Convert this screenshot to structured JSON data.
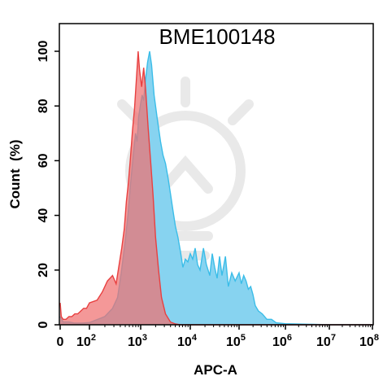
{
  "chart_data": {
    "type": "area",
    "title": "BME100148",
    "xlabel": "APC-A",
    "ylabel": "Count  (%)",
    "xscale": "biexponential",
    "xlim": [
      0,
      100000000
    ],
    "ylim": [
      0,
      110
    ],
    "x_ticks": [
      {
        "base": "0",
        "exp": ""
      },
      {
        "base": "10",
        "exp": "2"
      },
      {
        "base": "10",
        "exp": "3"
      },
      {
        "base": "10",
        "exp": "4"
      },
      {
        "base": "10",
        "exp": "5"
      },
      {
        "base": "10",
        "exp": "6"
      },
      {
        "base": "10",
        "exp": "7"
      },
      {
        "base": "10",
        "exp": "8"
      }
    ],
    "y_ticks": [
      "0",
      "20",
      "40",
      "60",
      "80",
      "100"
    ],
    "grid": false,
    "legend": "none",
    "watermark": "lightbulb logo",
    "series": [
      {
        "color": "#3bbde8",
        "fill": "#87d3f0",
        "points": [
          [
            0,
            3
          ],
          [
            0.1,
            2
          ],
          [
            0.2,
            1
          ],
          [
            0.4,
            1
          ],
          [
            0.6,
            1
          ],
          [
            1.0,
            0.6
          ],
          [
            1.5,
            0.6
          ],
          [
            2.0,
            0.8
          ],
          [
            2.3,
            3
          ],
          [
            2.45,
            6
          ],
          [
            2.55,
            10
          ],
          [
            2.62,
            19
          ],
          [
            2.7,
            31
          ],
          [
            2.75,
            40
          ],
          [
            2.8,
            51
          ],
          [
            2.85,
            61
          ],
          [
            2.9,
            70
          ],
          [
            2.93,
            67
          ],
          [
            2.96,
            76
          ],
          [
            3.0,
            81
          ],
          [
            3.03,
            84
          ],
          [
            3.06,
            82
          ],
          [
            3.1,
            90
          ],
          [
            3.14,
            96
          ],
          [
            3.18,
            100
          ],
          [
            3.22,
            95
          ],
          [
            3.27,
            84
          ],
          [
            3.33,
            76
          ],
          [
            3.4,
            67
          ],
          [
            3.45,
            62
          ],
          [
            3.5,
            59
          ],
          [
            3.55,
            54
          ],
          [
            3.6,
            48
          ],
          [
            3.65,
            42
          ],
          [
            3.7,
            36
          ],
          [
            3.75,
            32
          ],
          [
            3.8,
            27
          ],
          [
            3.85,
            21
          ],
          [
            3.9,
            24
          ],
          [
            3.95,
            23
          ],
          [
            4.0,
            26
          ],
          [
            4.05,
            24
          ],
          [
            4.1,
            28
          ],
          [
            4.15,
            22
          ],
          [
            4.2,
            20
          ],
          [
            4.27,
            28
          ],
          [
            4.33,
            22
          ],
          [
            4.4,
            18
          ],
          [
            4.45,
            26
          ],
          [
            4.5,
            21
          ],
          [
            4.55,
            17
          ],
          [
            4.6,
            25
          ],
          [
            4.65,
            18
          ],
          [
            4.72,
            25
          ],
          [
            4.78,
            14
          ],
          [
            4.85,
            19
          ],
          [
            4.92,
            16
          ],
          [
            5.0,
            19
          ],
          [
            5.05,
            15
          ],
          [
            5.1,
            18
          ],
          [
            5.15,
            16
          ],
          [
            5.2,
            13
          ],
          [
            5.25,
            14
          ],
          [
            5.3,
            11
          ],
          [
            5.35,
            7
          ],
          [
            5.42,
            5
          ],
          [
            5.5,
            4
          ],
          [
            5.6,
            2
          ],
          [
            5.7,
            2
          ],
          [
            5.8,
            0.7
          ],
          [
            6.0,
            0.4
          ],
          [
            6.5,
            0.2
          ],
          [
            7.0,
            0
          ],
          [
            8.0,
            0
          ]
        ]
      },
      {
        "color": "#e84040",
        "fill": "#f07070",
        "points": [
          [
            0,
            8
          ],
          [
            0.08,
            3
          ],
          [
            0.2,
            2
          ],
          [
            0.4,
            2
          ],
          [
            0.6,
            3
          ],
          [
            0.8,
            3
          ],
          [
            1.0,
            4
          ],
          [
            1.2,
            4
          ],
          [
            1.4,
            5
          ],
          [
            1.6,
            6
          ],
          [
            1.8,
            6
          ],
          [
            2.0,
            8
          ],
          [
            2.15,
            9
          ],
          [
            2.25,
            12
          ],
          [
            2.35,
            16
          ],
          [
            2.45,
            18
          ],
          [
            2.52,
            15
          ],
          [
            2.58,
            22
          ],
          [
            2.63,
            28
          ],
          [
            2.68,
            35
          ],
          [
            2.72,
            45
          ],
          [
            2.76,
            52
          ],
          [
            2.8,
            61
          ],
          [
            2.84,
            71
          ],
          [
            2.88,
            79
          ],
          [
            2.92,
            91
          ],
          [
            2.95,
            100
          ],
          [
            2.98,
            93
          ],
          [
            3.02,
            87
          ],
          [
            3.06,
            94
          ],
          [
            3.1,
            86
          ],
          [
            3.15,
            72
          ],
          [
            3.2,
            60
          ],
          [
            3.25,
            47
          ],
          [
            3.3,
            32
          ],
          [
            3.36,
            20
          ],
          [
            3.42,
            10
          ],
          [
            3.5,
            4
          ],
          [
            3.6,
            1
          ],
          [
            3.7,
            0.3
          ],
          [
            3.8,
            0
          ],
          [
            8.0,
            0
          ]
        ]
      }
    ]
  }
}
